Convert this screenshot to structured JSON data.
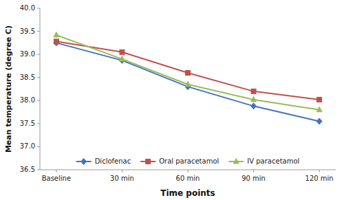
{
  "chart_data": {
    "type": "line",
    "categories": [
      "Baseline",
      "30 min",
      "60 min",
      "90 min",
      "120 min"
    ],
    "series": [
      {
        "name": "Diclofenac",
        "color": "#4472C4",
        "marker": "diamond",
        "values": [
          39.25,
          38.87,
          38.3,
          37.88,
          37.55
        ]
      },
      {
        "name": "Oral paracetamol",
        "color": "#C0504D",
        "marker": "square",
        "values": [
          39.28,
          39.05,
          38.6,
          38.2,
          38.02
        ]
      },
      {
        "name": "IV paracetamol",
        "color": "#9BBB59",
        "marker": "triangle",
        "values": [
          39.42,
          38.9,
          38.35,
          38.02,
          37.8
        ]
      }
    ],
    "xlabel": "Time points",
    "ylabel": "Mean temperature (degree C)",
    "ylim": [
      36.5,
      40.0
    ],
    "yticks": [
      36.5,
      {
        "value": 37.0,
        "label": "37.0"
      },
      37.5,
      {
        "value": 38.0,
        "label": "38.0"
      },
      38.5,
      {
        "value": 39.0,
        "label": "39.0"
      },
      39.5,
      {
        "value": 40.0,
        "label": "40.0"
      }
    ],
    "grid": false,
    "legend": "lower center"
  }
}
